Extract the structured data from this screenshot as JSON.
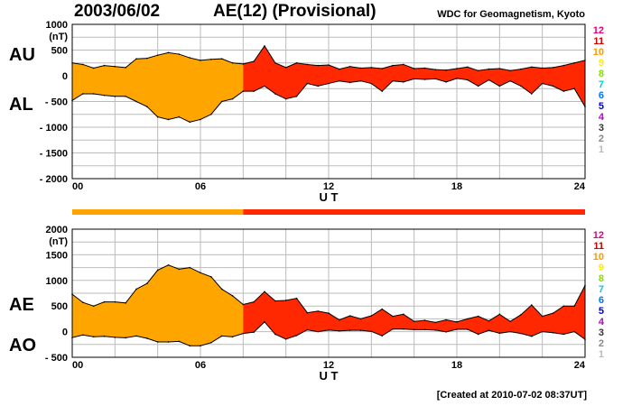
{
  "header": {
    "date": "2003/06/02",
    "title": "AE(12) (Provisional)",
    "source": "WDC for Geomagnetism, Kyoto"
  },
  "footer": {
    "created": "[Created at 2010-07-02 08:37UT]"
  },
  "station_legend": {
    "labels": [
      "12",
      "11",
      "10",
      "9",
      "8",
      "7",
      "6",
      "5",
      "4",
      "3",
      "2",
      "1"
    ],
    "colors": [
      "#e6007e",
      "#cc0000",
      "#ff9900",
      "#ffee00",
      "#88dd00",
      "#00ccdd",
      "#0077ff",
      "#0000cc",
      "#bb00cc",
      "#333333",
      "#888888",
      "#bbbbbb"
    ]
  },
  "colors": {
    "orange": "#ffa500",
    "red": "#ff2800",
    "grid": "#bbbbbb",
    "outline": "#000000"
  },
  "station_bar": [
    {
      "from": 0,
      "to": 8,
      "color": "#ffa500"
    },
    {
      "from": 8,
      "to": 24,
      "color": "#ff2800"
    }
  ],
  "chart_data": [
    {
      "type": "area",
      "name_labels": [
        "AU",
        "AL"
      ],
      "ylabel": "(nT)",
      "xlabel": "U T",
      "xlim": [
        0,
        24
      ],
      "ylim": [
        -2000,
        1000
      ],
      "xticks": [
        "00",
        "06",
        "12",
        "18",
        "24"
      ],
      "yticks": [
        "1000",
        "500",
        "0",
        "- 500",
        "- 1000",
        "- 1500",
        "- 2000"
      ],
      "x_hours": [
        0,
        0.5,
        1,
        1.5,
        2,
        2.5,
        3,
        3.5,
        4,
        4.5,
        5,
        5.5,
        6,
        6.5,
        7,
        7.5,
        8,
        8.5,
        9,
        9.5,
        10,
        10.5,
        11,
        11.5,
        12,
        12.5,
        13,
        13.5,
        14,
        14.5,
        15,
        15.5,
        16,
        16.5,
        17,
        17.5,
        18,
        18.5,
        19,
        19.5,
        20,
        20.5,
        21,
        21.5,
        22,
        22.5,
        23,
        23.5,
        24
      ],
      "series": [
        {
          "name": "AU",
          "values": [
            250,
            220,
            150,
            200,
            180,
            160,
            330,
            340,
            400,
            450,
            420,
            350,
            300,
            320,
            330,
            250,
            230,
            280,
            580,
            250,
            160,
            250,
            220,
            200,
            210,
            130,
            180,
            150,
            160,
            140,
            200,
            220,
            140,
            150,
            120,
            110,
            140,
            170,
            100,
            130,
            140,
            100,
            130,
            170,
            150,
            160,
            200,
            250,
            300
          ]
        },
        {
          "name": "AL",
          "values": [
            -480,
            -350,
            -350,
            -380,
            -400,
            -400,
            -500,
            -600,
            -800,
            -850,
            -800,
            -900,
            -850,
            -750,
            -500,
            -450,
            -300,
            -300,
            -200,
            -350,
            -450,
            -400,
            -150,
            -200,
            -150,
            -100,
            -130,
            -100,
            -150,
            -300,
            -100,
            -120,
            -60,
            -70,
            -60,
            -120,
            -50,
            -80,
            -200,
            -80,
            -200,
            -100,
            -200,
            -350,
            -150,
            -200,
            -300,
            -250,
            -600
          ]
        }
      ]
    },
    {
      "type": "area",
      "name_labels": [
        "AE",
        "AO"
      ],
      "ylabel": "(nT)",
      "xlabel": "U T",
      "xlim": [
        0,
        24
      ],
      "ylim": [
        -500,
        2000
      ],
      "xticks": [
        "00",
        "06",
        "12",
        "18",
        "24"
      ],
      "yticks": [
        "2000",
        "1500",
        "1000",
        "500",
        "0",
        "- 500"
      ],
      "x_hours": [
        0,
        0.5,
        1,
        1.5,
        2,
        2.5,
        3,
        3.5,
        4,
        4.5,
        5,
        5.5,
        6,
        6.5,
        7,
        7.5,
        8,
        8.5,
        9,
        9.5,
        10,
        10.5,
        11,
        11.5,
        12,
        12.5,
        13,
        13.5,
        14,
        14.5,
        15,
        15.5,
        16,
        16.5,
        17,
        17.5,
        18,
        18.5,
        19,
        19.5,
        20,
        20.5,
        21,
        21.5,
        22,
        22.5,
        23,
        23.5,
        24
      ],
      "series": [
        {
          "name": "AE",
          "values": [
            730,
            570,
            500,
            580,
            580,
            560,
            830,
            940,
            1200,
            1300,
            1220,
            1250,
            1150,
            1070,
            830,
            700,
            530,
            580,
            780,
            600,
            610,
            650,
            370,
            400,
            360,
            230,
            310,
            250,
            310,
            440,
            300,
            340,
            200,
            220,
            180,
            230,
            190,
            250,
            300,
            210,
            340,
            200,
            330,
            520,
            300,
            360,
            500,
            500,
            900
          ]
        },
        {
          "name": "AO",
          "values": [
            -115,
            -65,
            -100,
            -90,
            -110,
            -120,
            -85,
            -130,
            -200,
            -200,
            -190,
            -275,
            -275,
            -215,
            -85,
            -100,
            -35,
            -10,
            190,
            -50,
            -145,
            -75,
            35,
            0,
            30,
            15,
            25,
            25,
            5,
            -80,
            50,
            50,
            40,
            40,
            30,
            -5,
            45,
            45,
            -50,
            25,
            -30,
            0,
            -35,
            -90,
            0,
            -20,
            -50,
            0,
            -150
          ]
        }
      ]
    }
  ]
}
